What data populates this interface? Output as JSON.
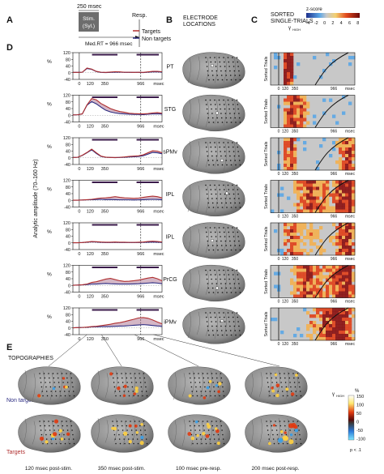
{
  "panel_letters": {
    "A": "A",
    "B": "B",
    "C": "C",
    "D": "D",
    "E": "E"
  },
  "panel_a": {
    "stim_duration": "250 msec",
    "stim_label": "Stim.",
    "stim_sub": "(Syl.)",
    "response_label": "Resp.",
    "median_rt": "Med.RT = 966 msec"
  },
  "legend": {
    "targets": "Targets",
    "non_targets": "Non targets",
    "targets_color": "#b03030",
    "non_targets_color": "#2a2a80"
  },
  "panel_b_title": [
    "ELECTRODE",
    "LOCATIONS"
  ],
  "panel_c_title": [
    "SORTED",
    "SINGLE-TRIALS"
  ],
  "colorbar_c": {
    "title": "z-score",
    "symbol": "γ",
    "symbol_sub": "HIGH",
    "ticks": [
      "-4",
      "-2",
      "0",
      "2",
      "4",
      "6",
      "8"
    ]
  },
  "y_axis_label": "Analytic amplitude (70–160 Hz)",
  "y_unit": "%",
  "y_ticks": [
    "120",
    "80",
    "40",
    "0",
    "-40"
  ],
  "x_ticks": [
    "0",
    "120",
    "350",
    "966",
    "msec"
  ],
  "sorted_trials_label": "Sorted Trials",
  "c_x_ticks": [
    "0",
    "120",
    "350",
    "966",
    "msec"
  ],
  "regions": [
    {
      "label": "PT",
      "targets": [
        2,
        2,
        3,
        28,
        22,
        8,
        3,
        2,
        4,
        6,
        5,
        3,
        3,
        2,
        3,
        2,
        5,
        8,
        8,
        6
      ],
      "non_targets": [
        2,
        2,
        3,
        25,
        20,
        7,
        2,
        1,
        2,
        3,
        4,
        2,
        2,
        2,
        2,
        1,
        3,
        5,
        5,
        4
      ]
    },
    {
      "label": "STG",
      "targets": [
        2,
        3,
        8,
        62,
        100,
        92,
        70,
        55,
        40,
        30,
        22,
        18,
        12,
        10,
        9,
        8,
        10,
        14,
        16,
        12
      ],
      "non_targets": [
        2,
        3,
        8,
        60,
        82,
        68,
        48,
        30,
        20,
        14,
        10,
        8,
        6,
        5,
        5,
        4,
        6,
        8,
        9,
        7
      ]
    },
    {
      "label": "sPMv",
      "targets": [
        2,
        3,
        15,
        32,
        52,
        30,
        10,
        4,
        2,
        2,
        3,
        5,
        8,
        10,
        12,
        18,
        30,
        42,
        40,
        30
      ],
      "non_targets": [
        2,
        3,
        14,
        30,
        48,
        26,
        8,
        3,
        2,
        1,
        2,
        3,
        5,
        6,
        8,
        12,
        22,
        32,
        30,
        24
      ]
    },
    {
      "label": "IPL",
      "targets": [
        1,
        1,
        2,
        4,
        6,
        10,
        14,
        15,
        18,
        22,
        18,
        15,
        14,
        12,
        14,
        18,
        22,
        25,
        22,
        15
      ],
      "non_targets": [
        1,
        1,
        2,
        3,
        4,
        5,
        6,
        4,
        5,
        4,
        3,
        3,
        3,
        2,
        3,
        4,
        5,
        6,
        5,
        4
      ]
    },
    {
      "label": "IPL",
      "targets": [
        1,
        1,
        2,
        5,
        8,
        7,
        5,
        4,
        4,
        5,
        4,
        4,
        3,
        3,
        4,
        5,
        8,
        10,
        8,
        5
      ],
      "non_targets": [
        1,
        1,
        2,
        4,
        6,
        5,
        3,
        2,
        2,
        3,
        2,
        2,
        2,
        2,
        2,
        3,
        4,
        5,
        4,
        3
      ]
    },
    {
      "label": "PrCG",
      "targets": [
        1,
        2,
        4,
        8,
        18,
        22,
        30,
        38,
        42,
        35,
        28,
        24,
        25,
        28,
        32,
        38,
        44,
        48,
        40,
        28
      ],
      "non_targets": [
        1,
        2,
        3,
        5,
        8,
        8,
        10,
        12,
        10,
        9,
        8,
        8,
        8,
        9,
        10,
        12,
        14,
        16,
        14,
        10
      ]
    },
    {
      "label": "iPMv",
      "targets": [
        1,
        2,
        3,
        5,
        8,
        10,
        14,
        18,
        22,
        28,
        32,
        38,
        45,
        52,
        60,
        62,
        58,
        48,
        36,
        25
      ],
      "non_targets": [
        1,
        2,
        3,
        4,
        6,
        7,
        8,
        8,
        9,
        10,
        11,
        12,
        14,
        16,
        18,
        20,
        18,
        15,
        12,
        10
      ]
    }
  ],
  "topo": {
    "title": "TOPOGRAPHIES",
    "rows": [
      "Non targets",
      "Targets"
    ],
    "captions": [
      "120 msec post-stim.",
      "350 msec post-stim.",
      "100 msec pre-resp.",
      "200 msec post-resp."
    ],
    "colorbar": {
      "symbol": "γ",
      "symbol_sub": "HIGH",
      "unit": "%",
      "ticks": [
        "150",
        "100",
        "50",
        "0",
        "-50",
        "-100"
      ],
      "p_label": "p < .1"
    }
  }
}
